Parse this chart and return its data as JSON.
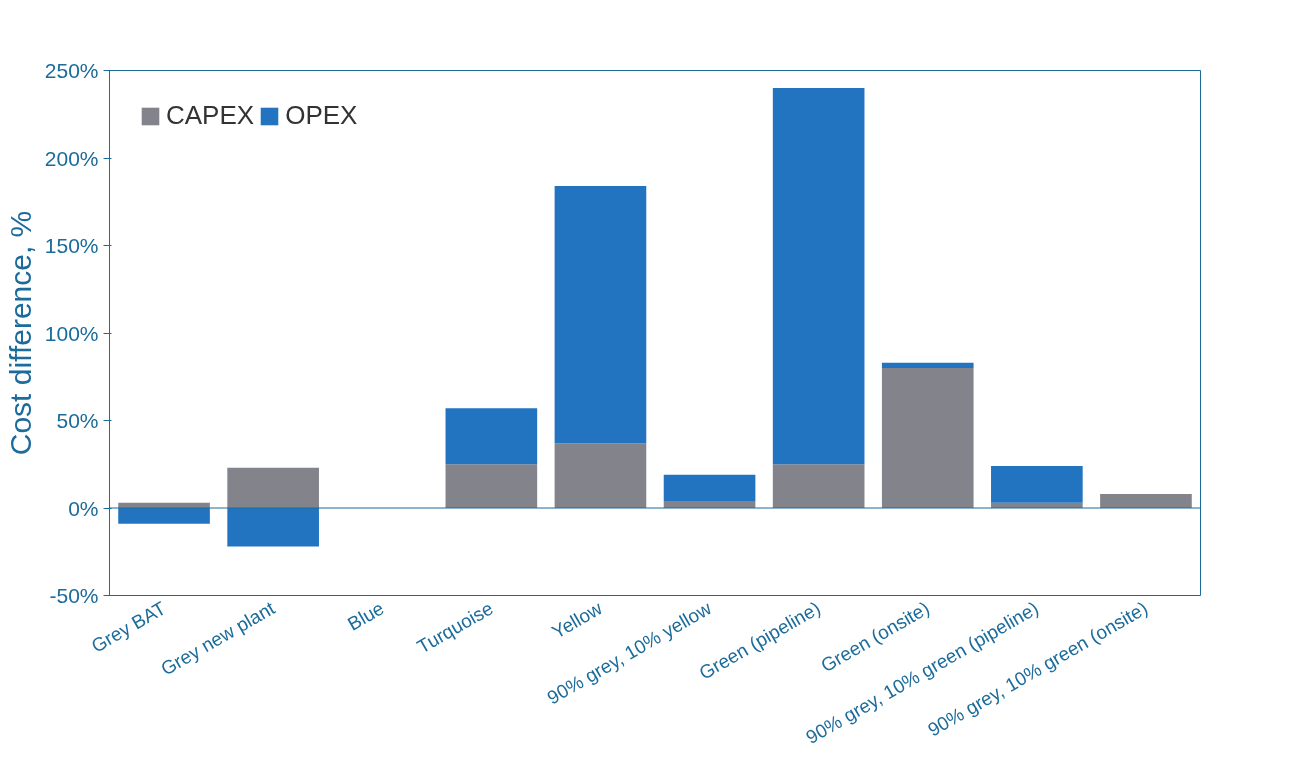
{
  "chart_data": {
    "type": "bar",
    "stacked": true,
    "ylabel": "Cost difference, %",
    "categories": [
      "Grey BAT",
      "Grey new plant",
      "Blue",
      "Turquoise",
      "Yellow",
      "90% grey, 10% yellow",
      "Green (pipeline)",
      "Green (onsite)",
      "90% grey, 10% green (pipeline)",
      "90% grey, 10% green (onsite)"
    ],
    "series": [
      {
        "name": "CAPEX",
        "color": "#82838b",
        "values": [
          3,
          23,
          0,
          25,
          37,
          4,
          25,
          80,
          3,
          8
        ]
      },
      {
        "name": "OPEX",
        "color": "#2274c1",
        "values": [
          -9,
          -22,
          0,
          32,
          147,
          15,
          215,
          3,
          21,
          0
        ]
      }
    ],
    "ylim": [
      -50,
      250
    ],
    "yticks": [
      {
        "value": -50,
        "label": "-50%"
      },
      {
        "value": 0,
        "label": "0%"
      },
      {
        "value": 50,
        "label": "50%"
      },
      {
        "value": 100,
        "label": "100%"
      },
      {
        "value": 150,
        "label": "150%"
      },
      {
        "value": 200,
        "label": "200%"
      },
      {
        "value": 250,
        "label": "250%"
      }
    ],
    "ref_lines": [
      {
        "axis": "y",
        "value": 0,
        "color": "#1b6b9b"
      }
    ],
    "grid": false,
    "legend": "top left"
  }
}
